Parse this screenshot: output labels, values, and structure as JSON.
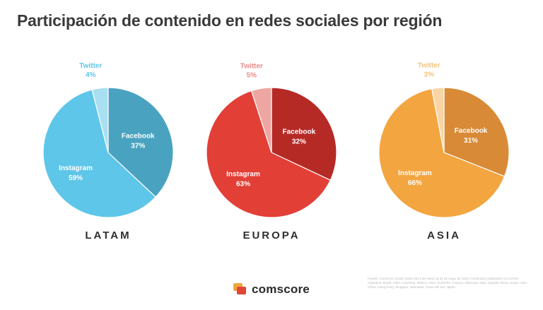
{
  "header": {
    "title": "Participación de contenido en redes sociales por región"
  },
  "chart_data": [
    {
      "type": "pie",
      "region": "LATAM",
      "slices": [
        {
          "label": "Facebook",
          "value": 37,
          "display": "37%",
          "color": "#49a3c0"
        },
        {
          "label": "Instagram",
          "value": 59,
          "display": "59%",
          "color": "#5ec6e8"
        },
        {
          "label": "Twitter",
          "value": 4,
          "display": "4%",
          "color": "#a9e0f1",
          "labelColor": "#5ec6e8"
        }
      ]
    },
    {
      "type": "pie",
      "region": "EUROPA",
      "slices": [
        {
          "label": "Facebook",
          "value": 32,
          "display": "32%",
          "color": "#b62a26"
        },
        {
          "label": "Instagram",
          "value": 63,
          "display": "63%",
          "color": "#e23f37"
        },
        {
          "label": "Twitter",
          "value": 5,
          "display": "5%",
          "color": "#eea6a3",
          "labelColor": "#e98c88"
        }
      ]
    },
    {
      "type": "pie",
      "region": "ASIA",
      "slices": [
        {
          "label": "Facebook",
          "value": 31,
          "display": "31%",
          "color": "#d98a36"
        },
        {
          "label": "Instagram",
          "value": 66,
          "display": "66%",
          "color": "#f3a540"
        },
        {
          "label": "Twitter",
          "value": 3,
          "display": "3%",
          "color": "#f9d5a5",
          "labelColor": "#f6c27c"
        }
      ]
    }
  ],
  "footer": {
    "note": "Fuente: Comscore Social. Datos del 1 de marzo al 31 de mayo de 2020. Contenidos publicados en LATAM: Argentina, Brasil, Chile, Colombia, México, Perú. EUROPA: Francia, Alemania, Italia, España, Reino Unido. ASIA: China, Hong Kong, Singapur, Indonesia, Corea del Sur, Japón",
    "brand": "comscore"
  }
}
